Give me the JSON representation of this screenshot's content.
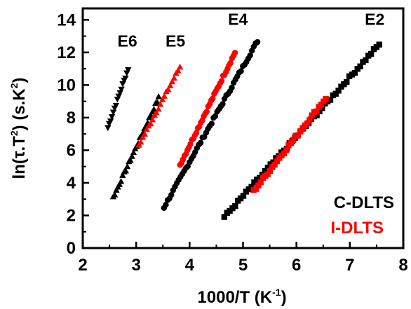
{
  "chart_data": {
    "type": "scatter",
    "title": "",
    "xlabel": "1000/T (K",
    "xlabel_sup": "-1",
    "xlabel_close": ")",
    "ylabel": "ln(τ.T",
    "ylabel_sup": "2",
    "ylabel_close": ") (s.K",
    "ylabel_sup2": "2",
    "ylabel_end": ")",
    "xlim": [
      2,
      8
    ],
    "ylim": [
      0,
      14.7
    ],
    "xticks": [
      "2",
      "3",
      "4",
      "5",
      "6",
      "7",
      "8"
    ],
    "yticks": [
      "0",
      "2",
      "4",
      "6",
      "8",
      "10",
      "12",
      "14"
    ],
    "grid": false,
    "legend": [
      {
        "label": "C-DLTS",
        "color": "#000000"
      },
      {
        "label": "I-DLTS",
        "color": "#ff0000"
      }
    ],
    "legend_position": "bottom-right",
    "annotations": [
      {
        "text": "E6",
        "x": 2.65,
        "y": 12.35
      },
      {
        "text": "E5",
        "x": 3.55,
        "y": 12.35
      },
      {
        "text": "E4",
        "x": 4.72,
        "y": 13.7
      },
      {
        "text": "E2",
        "x": 7.28,
        "y": 13.7
      }
    ],
    "series": [
      {
        "name": "C-DLTS",
        "trap": "E6",
        "color": "#000000",
        "marker": "triangle-down",
        "x_range": [
          2.47,
          2.85
        ],
        "y_range": [
          7.4,
          11.0
        ],
        "count": 16
      },
      {
        "name": "C-DLTS",
        "trap": "E5",
        "color": "#000000",
        "marker": "triangle-up",
        "x_range": [
          2.57,
          3.42
        ],
        "y_range": [
          3.1,
          9.2
        ],
        "count": 30
      },
      {
        "name": "I-DLTS",
        "trap": "E5",
        "color": "#ff0000",
        "marker": "triangle-up",
        "x_range": [
          3.05,
          3.82
        ],
        "y_range": [
          6.3,
          11.1
        ],
        "count": 22
      },
      {
        "name": "C-DLTS",
        "trap": "E4",
        "color": "#000000",
        "marker": "circle",
        "x_range": [
          3.52,
          5.27
        ],
        "y_range": [
          2.5,
          12.7
        ],
        "count": 52
      },
      {
        "name": "I-DLTS",
        "trap": "E4",
        "color": "#ff0000",
        "marker": "circle",
        "x_range": [
          3.82,
          4.85
        ],
        "y_range": [
          5.1,
          12.0
        ],
        "count": 38
      },
      {
        "name": "C-DLTS",
        "trap": "E2",
        "color": "#000000",
        "marker": "square",
        "x_range": [
          4.65,
          7.55
        ],
        "y_range": [
          1.9,
          12.5
        ],
        "count": 58
      },
      {
        "name": "I-DLTS",
        "trap": "E2",
        "color": "#ff0000",
        "marker": "square",
        "x_range": [
          5.2,
          6.55
        ],
        "y_range": [
          3.5,
          9.2
        ],
        "count": 32
      }
    ]
  }
}
